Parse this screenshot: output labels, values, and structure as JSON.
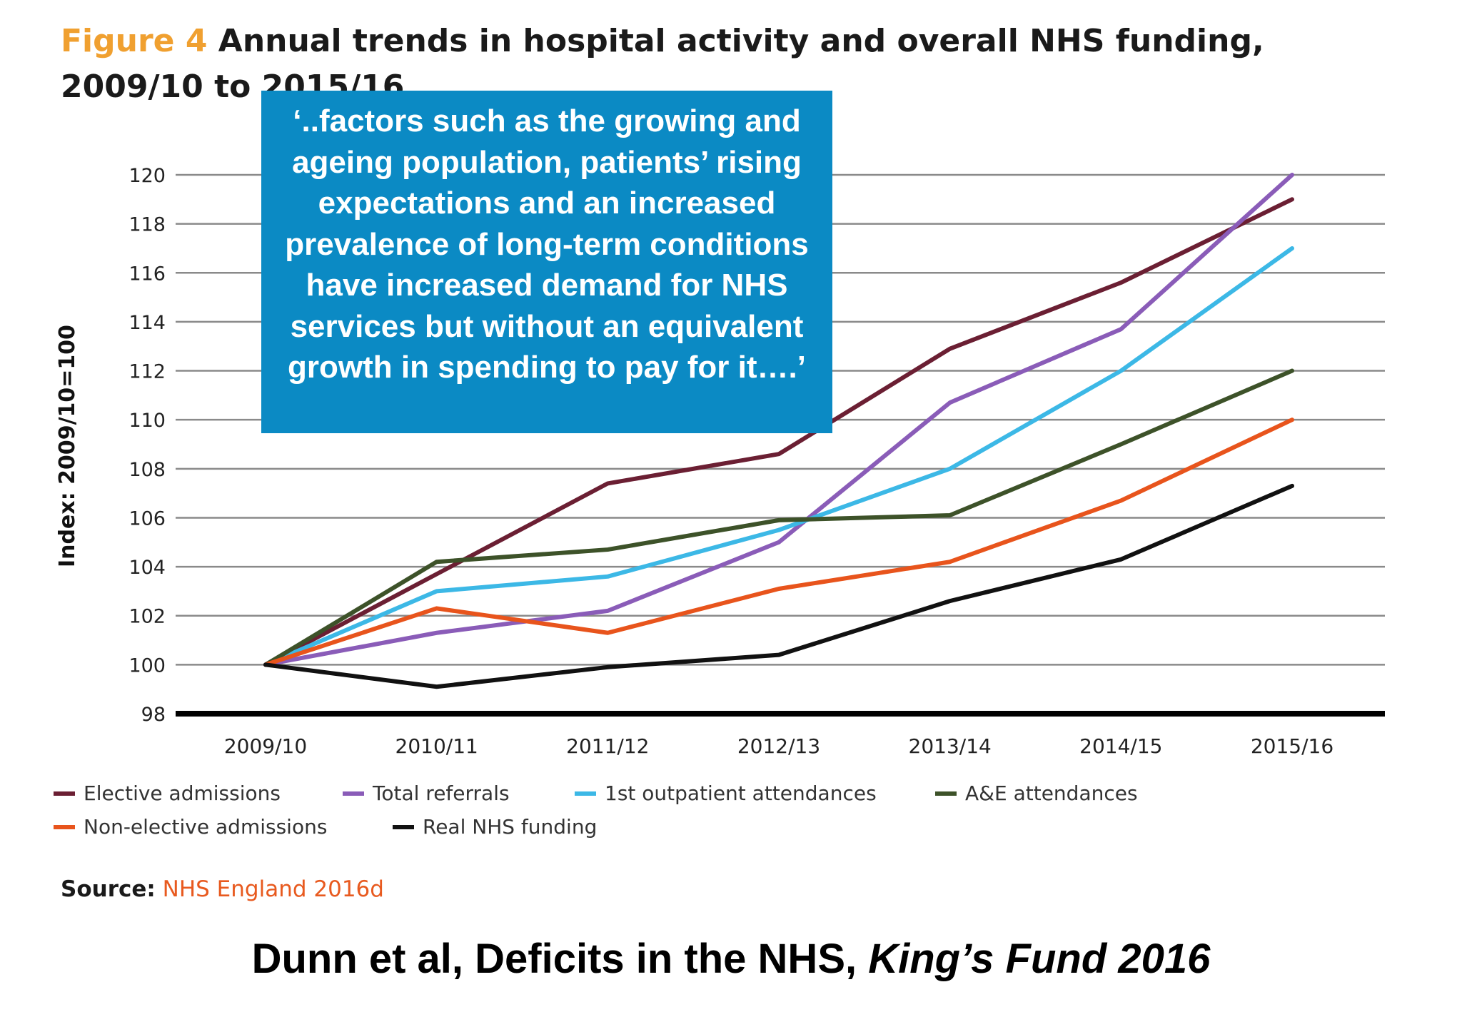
{
  "title": {
    "figure_label": "Figure 4",
    "text": "Annual trends in hospital activity and overall NHS funding, 2009/10 to 2015/16"
  },
  "callout": {
    "text": "‘..factors such as the growing and ageing population, patients’ rising expectations and an increased prevalence of long-term conditions have increased demand for NHS services but without an equivalent growth in spending to pay for it….’"
  },
  "source": {
    "label": "Source:",
    "ref": "NHS England 2016d"
  },
  "citation": {
    "main": "Dunn et al, Deficits in the NHS,",
    "italic": "King’s Fund 2016"
  },
  "chart_data": {
    "type": "line",
    "ylabel": "Index: 2009/10=100",
    "xlabel": "",
    "ylim": [
      98,
      120
    ],
    "yticks": [
      98,
      100,
      102,
      104,
      106,
      108,
      110,
      112,
      114,
      116,
      118,
      120
    ],
    "grid": true,
    "legend_position": "bottom",
    "categories": [
      "2009/10",
      "2010/11",
      "2011/12",
      "2012/13",
      "2013/14",
      "2014/15",
      "2015/16"
    ],
    "series": [
      {
        "name": "Elective admissions",
        "color": "#6b1f33",
        "values": [
          100,
          103.7,
          107.4,
          108.6,
          112.9,
          115.6,
          119.0
        ]
      },
      {
        "name": "Total referrals",
        "color": "#8a5cb8",
        "values": [
          100,
          101.3,
          102.2,
          105.0,
          110.7,
          113.7,
          120.0
        ]
      },
      {
        "name": "1st outpatient attendances",
        "color": "#3cb8e6",
        "values": [
          100,
          103.0,
          103.6,
          105.5,
          108.0,
          112.0,
          117.0
        ]
      },
      {
        "name": "A&E attendances",
        "color": "#3d5229",
        "values": [
          100,
          104.2,
          104.7,
          105.9,
          106.1,
          109.0,
          112.0
        ]
      },
      {
        "name": "Non-elective admissions",
        "color": "#e8541c",
        "values": [
          100,
          102.3,
          101.3,
          103.1,
          104.2,
          106.7,
          110.0
        ]
      },
      {
        "name": "Real NHS funding",
        "color": "#111111",
        "values": [
          100,
          99.1,
          99.9,
          100.4,
          102.6,
          104.3,
          107.3
        ]
      }
    ]
  }
}
